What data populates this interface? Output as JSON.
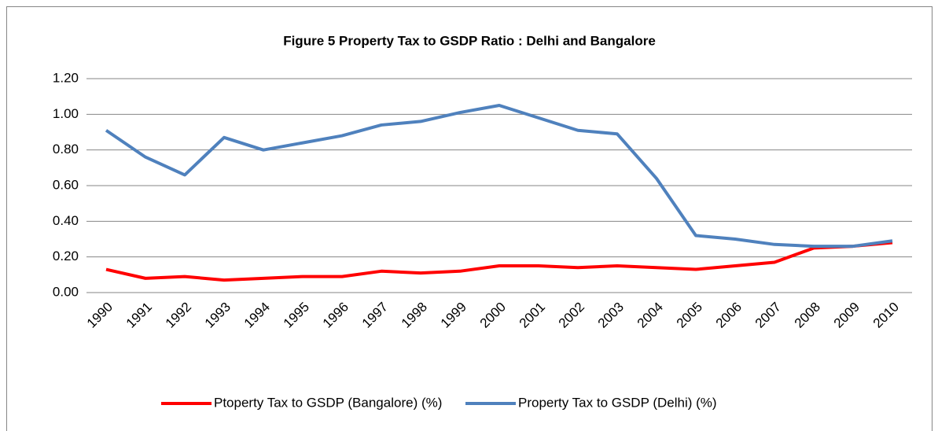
{
  "chart_data": {
    "type": "line",
    "title": "Figure 5 Property Tax to GSDP Ratio : Delhi and Bangalore",
    "categories": [
      "1990",
      "1991",
      "1992",
      "1993",
      "1994",
      "1995",
      "1996",
      "1997",
      "1998",
      "1999",
      "2000",
      "2001",
      "2002",
      "2003",
      "2004",
      "2005",
      "2006",
      "2007",
      "2008",
      "2009",
      "2010"
    ],
    "series": [
      {
        "name": "Ptoperty Tax to GSDP (Bangalore) (%)",
        "color": "#ff0000",
        "values": [
          0.13,
          0.08,
          0.09,
          0.07,
          0.08,
          0.09,
          0.09,
          0.12,
          0.11,
          0.12,
          0.15,
          0.15,
          0.14,
          0.15,
          0.14,
          0.13,
          0.15,
          0.17,
          0.25,
          0.26,
          0.28
        ]
      },
      {
        "name": "Property Tax to GSDP (Delhi) (%)",
        "color": "#4f81bd",
        "values": [
          0.91,
          0.76,
          0.66,
          0.87,
          0.8,
          0.84,
          0.88,
          0.94,
          0.96,
          1.01,
          1.05,
          0.98,
          0.91,
          0.89,
          0.64,
          0.32,
          0.3,
          0.27,
          0.26,
          0.26,
          0.29
        ]
      }
    ],
    "ylim": [
      0,
      1.2
    ],
    "yticks": [
      {
        "value": 0,
        "label": "0.00"
      },
      {
        "value": 0.2,
        "label": "0.20"
      },
      {
        "value": 0.4,
        "label": "0.40"
      },
      {
        "value": 0.6,
        "label": "0.60"
      },
      {
        "value": 0.8,
        "label": "0.80"
      },
      {
        "value": 1,
        "label": "1.00"
      },
      {
        "value": 1.2,
        "label": "1.20"
      }
    ],
    "grid": true,
    "legend": "bottom"
  }
}
